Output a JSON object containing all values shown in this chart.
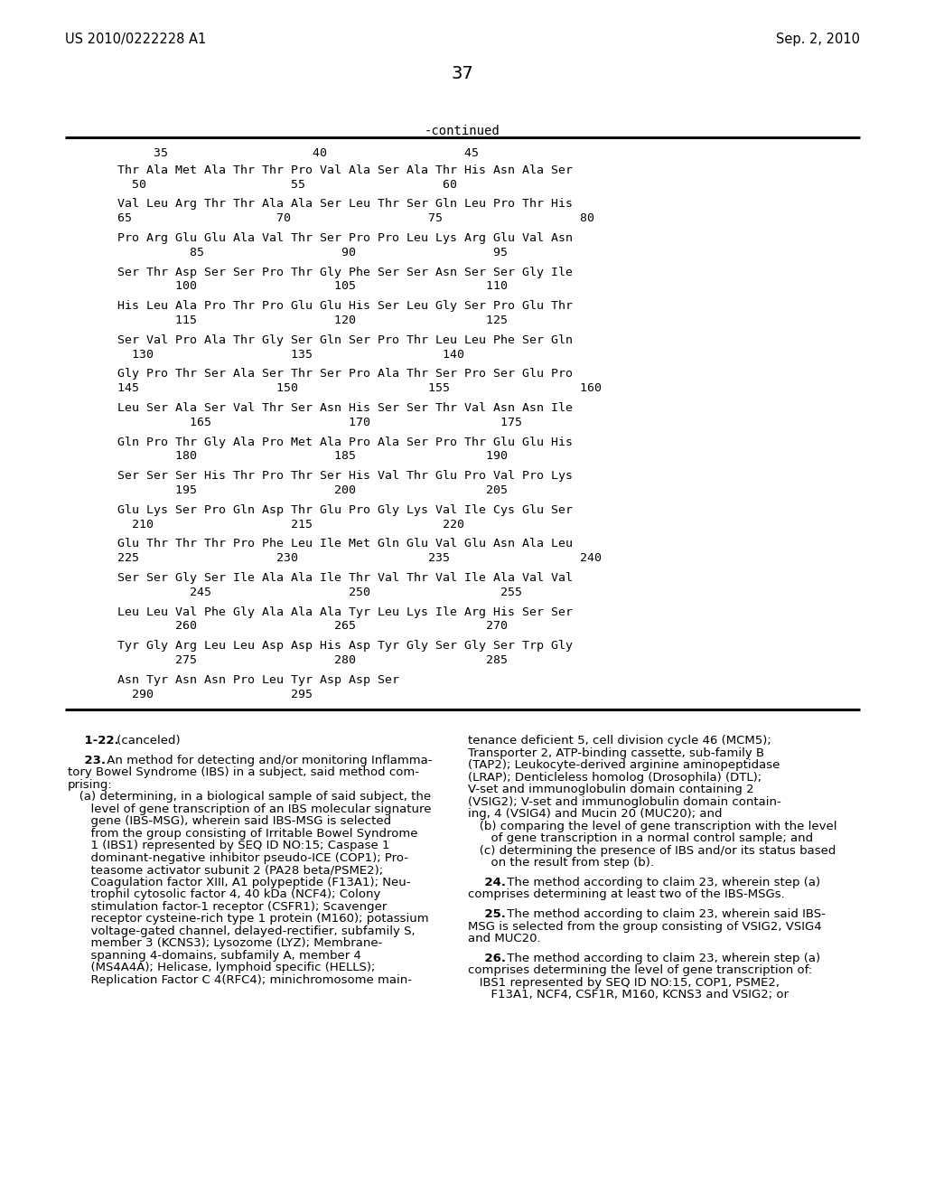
{
  "header_left": "US 2010/0222228 A1",
  "header_right": "Sep. 2, 2010",
  "page_number": "37",
  "continued_label": "-continued",
  "background_color": "#ffffff",
  "text_color": "#000000",
  "sequence_header": "     35                    40                   45",
  "sequence_lines": [
    "Thr Ala Met Ala Thr Thr Pro Val Ala Ser Ala Thr His Asn Ala Ser",
    "  50                    55                   60",
    "",
    "Val Leu Arg Thr Thr Ala Ala Ser Leu Thr Ser Gln Leu Pro Thr His",
    "65                    70                   75                   80",
    "",
    "Pro Arg Glu Glu Ala Val Thr Ser Pro Pro Leu Lys Arg Glu Val Asn",
    "          85                   90                   95",
    "",
    "Ser Thr Asp Ser Ser Pro Thr Gly Phe Ser Ser Asn Ser Ser Gly Ile",
    "        100                   105                  110",
    "",
    "His Leu Ala Pro Thr Pro Glu Glu His Ser Leu Gly Ser Pro Glu Thr",
    "        115                   120                  125",
    "",
    "Ser Val Pro Ala Thr Gly Ser Gln Ser Pro Thr Leu Leu Phe Ser Gln",
    "  130                   135                  140",
    "",
    "Gly Pro Thr Ser Ala Ser Thr Ser Pro Ala Thr Ser Pro Ser Glu Pro",
    "145                   150                  155                  160",
    "",
    "Leu Ser Ala Ser Val Thr Ser Asn His Ser Ser Thr Val Asn Asn Ile",
    "          165                   170                  175",
    "",
    "Gln Pro Thr Gly Ala Pro Met Ala Pro Ala Ser Pro Thr Glu Glu His",
    "        180                   185                  190",
    "",
    "Ser Ser Ser His Thr Pro Thr Ser His Val Thr Glu Pro Val Pro Lys",
    "        195                   200                  205",
    "",
    "Glu Lys Ser Pro Gln Asp Thr Glu Pro Gly Lys Val Ile Cys Glu Ser",
    "  210                   215                  220",
    "",
    "Glu Thr Thr Thr Pro Phe Leu Ile Met Gln Glu Val Glu Asn Ala Leu",
    "225                   230                  235                  240",
    "",
    "Ser Ser Gly Ser Ile Ala Ala Ile Thr Val Thr Val Ile Ala Val Val",
    "          245                   250                  255",
    "",
    "Leu Leu Val Phe Gly Ala Ala Ala Tyr Leu Lys Ile Arg His Ser Ser",
    "        260                   265                  270",
    "",
    "Tyr Gly Arg Leu Leu Asp Asp His Asp Tyr Gly Ser Gly Ser Trp Gly",
    "        275                   280                  285",
    "",
    "Asn Tyr Asn Asn Pro Leu Tyr Asp Asp Ser",
    "  290                   295"
  ],
  "col1_lines": [
    {
      "text": "    1-22. (canceled)",
      "bold_prefix": "    1-22.",
      "bold_suffix": " (canceled)"
    },
    {
      "text": ""
    },
    {
      "text": "    23. An method for detecting and/or monitoring Inflamma-",
      "bold_prefix": "    23.",
      "bold_suffix": " An method for detecting and/or monitoring Inflamma-"
    },
    {
      "text": "tory Bowel Syndrome (IBS) in a subject, said method com-"
    },
    {
      "text": "prising:"
    },
    {
      "text": "   (a) determining, in a biological sample of said subject, the"
    },
    {
      "text": "      level of gene transcription of an IBS molecular signature"
    },
    {
      "text": "      gene (IBS-MSG), wherein said IBS-MSG is selected"
    },
    {
      "text": "      from the group consisting of Irritable Bowel Syndrome"
    },
    {
      "text": "      1 (IBS1) represented by SEQ ID NO:15; Caspase 1"
    },
    {
      "text": "      dominant-negative inhibitor pseudo-ICE (COP1); Pro-"
    },
    {
      "text": "      teasome activator subunit 2 (PA28 beta/PSME2);"
    },
    {
      "text": "      Coagulation factor XIII, A1 polypeptide (F13A1); Neu-"
    },
    {
      "text": "      trophil cytosolic factor 4, 40 kDa (NCF4); Colony"
    },
    {
      "text": "      stimulation factor-1 receptor (CSFR1); Scavenger"
    },
    {
      "text": "      receptor cysteine-rich type 1 protein (M160); potassium"
    },
    {
      "text": "      voltage-gated channel, delayed-rectifier, subfamily S,"
    },
    {
      "text": "      member 3 (KCNS3); Lysozome (LYZ); Membrane-"
    },
    {
      "text": "      spanning 4-domains, subfamily A, member 4"
    },
    {
      "text": "      (MS4A4A); Helicase, lymphoid specific (HELLS);"
    },
    {
      "text": "      Replication Factor C 4(RFC4); minichromosome main-"
    }
  ],
  "col2_lines": [
    {
      "text": "tenance deficient 5, cell division cycle 46 (MCM5);"
    },
    {
      "text": "Transporter 2, ATP-binding cassette, sub-family B"
    },
    {
      "text": "(TAP2); Leukocyte-derived arginine aminopeptidase"
    },
    {
      "text": "(LRAP); Denticleless homolog (Drosophila) (DTL);"
    },
    {
      "text": "V-set and immunoglobulin domain containing 2"
    },
    {
      "text": "(VSIG2); V-set and immunoglobulin domain contain-"
    },
    {
      "text": "ing, 4 (VSIG4) and Mucin 20 (MUC20); and"
    },
    {
      "text": "   (b) comparing the level of gene transcription with the level"
    },
    {
      "text": "      of gene transcription in a normal control sample; and"
    },
    {
      "text": "   (c) determining the presence of IBS and/or its status based"
    },
    {
      "text": "      on the result from step (b)."
    },
    {
      "text": ""
    },
    {
      "text": "    24. The method according to claim 23, wherein step (a)",
      "bold_prefix": "    24.",
      "bold_suffix": " The method according to claim 23, wherein step (a)"
    },
    {
      "text": "comprises determining at least two of the IBS-MSGs."
    },
    {
      "text": ""
    },
    {
      "text": "    25. The method according to claim 23, wherein said IBS-",
      "bold_prefix": "    25.",
      "bold_suffix": " The method according to claim 23, wherein said IBS-"
    },
    {
      "text": "MSG is selected from the group consisting of VSIG2, VSIG4"
    },
    {
      "text": "and MUC20."
    },
    {
      "text": ""
    },
    {
      "text": "    26. The method according to claim 23, wherein step (a)",
      "bold_prefix": "    26.",
      "bold_suffix": " The method according to claim 23, wherein step (a)"
    },
    {
      "text": "comprises determining the level of gene transcription of:"
    },
    {
      "text": "   IBS1 represented by SEQ ID NO:15, COP1, PSME2,"
    },
    {
      "text": "      F13A1, NCF4, CSF1R, M160, KCNS3 and VSIG2; or"
    }
  ]
}
